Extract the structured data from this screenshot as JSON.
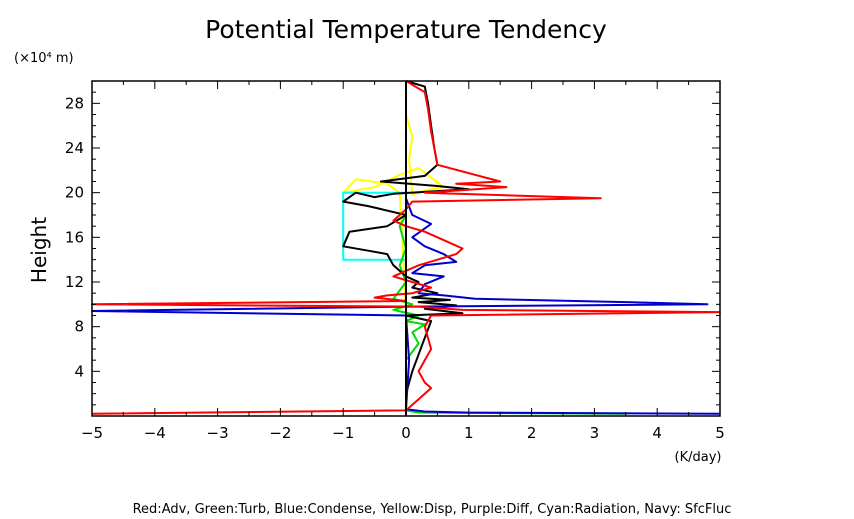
{
  "chart_data": {
    "type": "line",
    "title": "Potential Temperature Tendency",
    "ylabel": "Height",
    "y_unit": "(×10⁴ m)",
    "x_unit": "(K/day)",
    "xlim": [
      -5,
      5
    ],
    "ylim": [
      0,
      30
    ],
    "x_ticks": [
      "−5",
      "−4",
      "−3",
      "−2",
      "−1",
      "0",
      "1",
      "2",
      "3",
      "4",
      "5"
    ],
    "x_tick_values": [
      -5,
      -4,
      -3,
      -2,
      -1,
      0,
      1,
      2,
      3,
      4,
      5
    ],
    "y_ticks": [
      "4",
      "8",
      "12",
      "16",
      "20",
      "24",
      "28"
    ],
    "y_tick_values": [
      4,
      8,
      12,
      16,
      20,
      24,
      28
    ],
    "grid": false,
    "caption": "Red:Adv, Green:Turb, Blue:Condense, Yellow:Disp, Purple:Diff, Cyan:Radiation, Navy: SfcFluc",
    "series": [
      {
        "name": "Yellow:Disp",
        "color": "#ffff00",
        "x": [
          0,
          -0.1,
          -0.3,
          -0.8,
          -1.0,
          -0.5,
          -0.1,
          0.2,
          0.6,
          0.3,
          0.1,
          0.05,
          0.1,
          0.0
        ],
        "y": [
          9.5,
          20.0,
          20.8,
          21.2,
          20.0,
          20.5,
          21.6,
          22.2,
          20.5,
          20.2,
          19.8,
          23.0,
          25.0,
          27.0
        ]
      },
      {
        "name": "Cyan:Radiation",
        "color": "#00ffff",
        "x": [
          0.0,
          -1.0,
          -1.0,
          -0.3,
          0.0
        ],
        "y": [
          20.0,
          20.0,
          14.0,
          14.0,
          14.0
        ]
      },
      {
        "name": "Green:Turb",
        "color": "#00dd00",
        "x": [
          0.0,
          -0.1,
          0.0,
          -0.1,
          0.0,
          -0.2,
          0.1,
          -0.2,
          0.2,
          0.0,
          0.3,
          0.1,
          0.2,
          0.0,
          0.0,
          0.2,
          3.5
        ],
        "y": [
          18.0,
          17.0,
          15.0,
          13.5,
          12.0,
          10.5,
          10.0,
          9.5,
          9.0,
          8.5,
          8.2,
          7.5,
          6.5,
          5.0,
          0.5,
          0.3,
          0.2
        ]
      },
      {
        "name": "SfcFluc",
        "color": "#000000",
        "x": [
          0.0,
          0.3,
          0.35,
          0.4,
          0.45,
          0.5,
          0.3,
          -0.4,
          0.5,
          1.0,
          -0.2,
          -0.5,
          -0.8,
          -1.0,
          -0.6,
          0.0,
          -0.3,
          -0.9,
          -1.0,
          -0.6,
          -0.3,
          -0.2,
          0.0,
          0.2,
          0.1,
          0.5,
          0.1,
          0.7,
          0.2,
          0.8,
          0.3,
          0.9,
          0.0,
          0.4,
          0.3,
          0.1,
          0.0,
          0.0
        ],
        "y": [
          30.0,
          29.5,
          28.0,
          26.0,
          24.0,
          22.5,
          21.5,
          21.0,
          20.6,
          20.3,
          19.9,
          19.6,
          20.0,
          19.2,
          18.8,
          18.0,
          17.0,
          16.5,
          15.2,
          14.8,
          14.5,
          13.5,
          12.5,
          12.0,
          11.5,
          11.0,
          10.6,
          10.4,
          10.2,
          9.9,
          9.6,
          9.2,
          9.0,
          8.5,
          7.0,
          4.0,
          2.0,
          0.5
        ]
      },
      {
        "name": "Blue:Condense",
        "color": "#0000cc",
        "x": [
          0.0,
          0.0,
          0.1,
          0.4,
          0.1,
          0.3,
          0.6,
          0.8,
          0.3,
          0.1,
          0.6,
          0.3,
          0.2,
          0.6,
          1.1,
          3.5,
          4.8,
          0.1,
          -5.0,
          0.0,
          0.05,
          0.0,
          0.3,
          1.0,
          5.0
        ],
        "y": [
          21.0,
          19.5,
          18.0,
          17.2,
          16.0,
          15.2,
          14.5,
          13.8,
          13.5,
          12.8,
          12.5,
          11.8,
          11.0,
          10.8,
          10.5,
          10.2,
          10.0,
          9.8,
          9.4,
          9.0,
          5.0,
          0.6,
          0.4,
          0.3,
          0.2
        ]
      },
      {
        "name": "Red:Adv",
        "color": "#ff0000",
        "x": [
          0.0,
          0.3,
          0.35,
          0.4,
          0.45,
          0.5,
          1.5,
          0.8,
          1.6,
          0.3,
          3.1,
          0.1,
          0.0,
          -0.2,
          0.0,
          0.3,
          0.5,
          0.7,
          0.9,
          0.8,
          0.5,
          0.2,
          0.0,
          -0.2,
          0.1,
          0.4,
          0.1,
          -0.3,
          -0.5,
          0.0,
          -5.0,
          0.2,
          0.9,
          5.0,
          0.4,
          0.3,
          0.4,
          0.2,
          0.3,
          0.4,
          0.2,
          0.0,
          -5.0
        ],
        "y": [
          30.0,
          29.0,
          27.5,
          25.5,
          24.0,
          22.5,
          21.0,
          20.8,
          20.5,
          20.0,
          19.5,
          19.2,
          18.5,
          17.5,
          17.0,
          16.5,
          16.0,
          15.5,
          15.0,
          14.5,
          14.0,
          13.5,
          13.0,
          12.5,
          12.0,
          11.5,
          11.0,
          10.8,
          10.6,
          10.3,
          10.0,
          9.8,
          9.5,
          9.3,
          9.0,
          8.0,
          6.0,
          4.0,
          3.0,
          2.5,
          1.5,
          0.5,
          0.2
        ]
      }
    ]
  }
}
